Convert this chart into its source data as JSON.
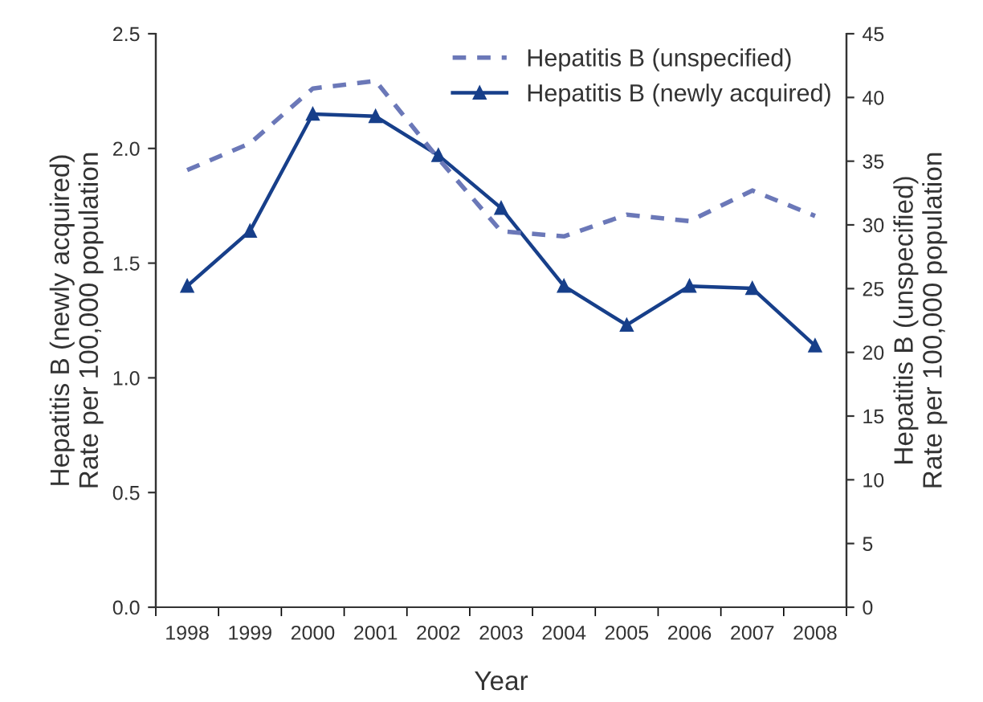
{
  "chart_data": {
    "type": "line",
    "xlabel": "Year",
    "ylabel": "Hepatitis B (newly acquired)\nRate per 100,000 population",
    "y2label": "Hepatitis B (unspecified)\nRate per 100,000 population",
    "categories": [
      "1998",
      "1999",
      "2000",
      "2001",
      "2002",
      "2003",
      "2004",
      "2005",
      "2006",
      "2007",
      "2008"
    ],
    "series": [
      {
        "name": "Hepatitis B (unspecified)",
        "color": "#6b78b8",
        "axis": "y2",
        "line_style": "dashed",
        "marker": "none",
        "values": [
          34.3,
          36.4,
          40.7,
          41.3,
          35.2,
          29.5,
          29.1,
          30.8,
          30.3,
          32.7,
          30.7
        ]
      },
      {
        "name": "Hepatitis B (newly acquired)",
        "color": "#173f8a",
        "axis": "y",
        "line_style": "solid",
        "marker": "triangle",
        "values": [
          1.4,
          1.64,
          2.15,
          2.14,
          1.97,
          1.74,
          1.4,
          1.23,
          1.4,
          1.39,
          1.14
        ]
      }
    ],
    "ylim": [
      0,
      2.5
    ],
    "yticks": [
      {
        "value": 0,
        "label": "0.0"
      },
      0.5,
      {
        "value": 1,
        "label": "1.0"
      },
      1.5,
      {
        "value": 2,
        "label": "2.0"
      },
      2.5
    ],
    "y2lim": [
      0,
      45
    ],
    "y2ticks": [
      0,
      5,
      10,
      15,
      20,
      25,
      30,
      35,
      40,
      45
    ],
    "legend": "top right",
    "grid": false
  }
}
